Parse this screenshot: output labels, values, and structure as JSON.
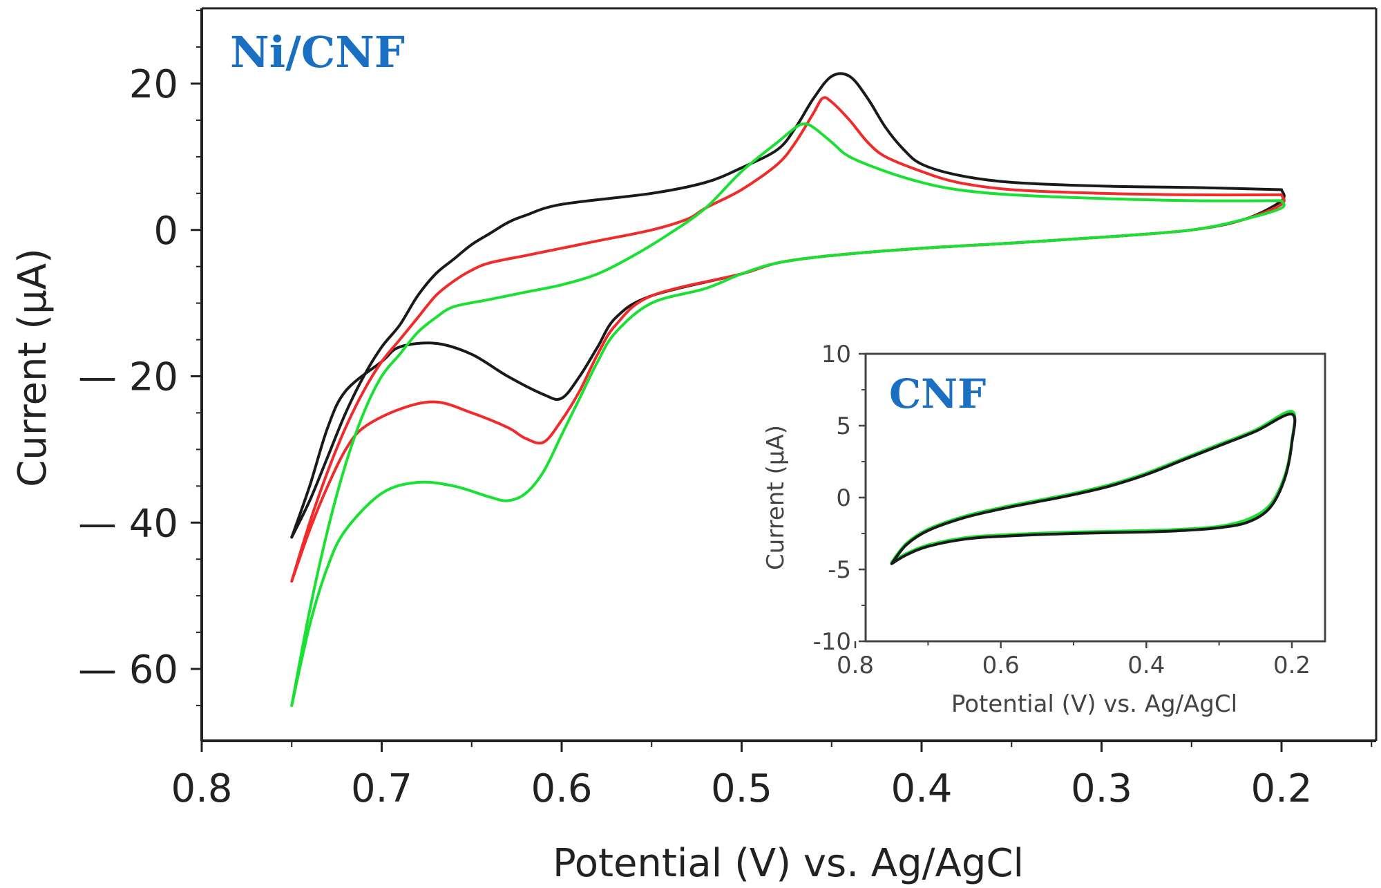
{
  "chart_data": [
    {
      "id": "main",
      "type": "line",
      "title": "Ni/CNF",
      "xlabel": "Potential (V) vs. Ag/AgCl",
      "ylabel": "Current (μA)",
      "xlim": [
        0.8,
        0.15
      ],
      "ylim": [
        -70,
        30
      ],
      "x_ticks": [
        0.8,
        0.7,
        0.6,
        0.5,
        0.4,
        0.3,
        0.2
      ],
      "x_tick_labels": [
        "0.8",
        "0.7",
        "0.6",
        "0.5",
        "0.4",
        "0.3",
        "0.2"
      ],
      "y_ticks": [
        20,
        0,
        -20,
        -40,
        -60
      ],
      "y_tick_labels": [
        "20",
        "0",
        "— 20",
        "— 40",
        "— 60"
      ],
      "series": [
        {
          "name": "cycle-black",
          "color": "#1a1a1a",
          "forward": [
            [
              0.75,
              -42
            ],
            [
              0.74,
              -37
            ],
            [
              0.73,
              -31
            ],
            [
              0.72,
              -25
            ],
            [
              0.71,
              -20
            ],
            [
              0.7,
              -16
            ],
            [
              0.69,
              -13
            ],
            [
              0.68,
              -9
            ],
            [
              0.67,
              -6
            ],
            [
              0.66,
              -4
            ],
            [
              0.65,
              -2
            ],
            [
              0.64,
              -0.5
            ],
            [
              0.63,
              1
            ],
            [
              0.62,
              2
            ],
            [
              0.6,
              3.5
            ],
            [
              0.55,
              5
            ],
            [
              0.52,
              6.5
            ],
            [
              0.5,
              8.5
            ],
            [
              0.48,
              11
            ],
            [
              0.47,
              14
            ],
            [
              0.46,
              18
            ],
            [
              0.45,
              21
            ],
            [
              0.44,
              21
            ],
            [
              0.43,
              18
            ],
            [
              0.42,
              14
            ],
            [
              0.41,
              11
            ],
            [
              0.4,
              9
            ],
            [
              0.38,
              7.5
            ],
            [
              0.35,
              6.5
            ],
            [
              0.3,
              6
            ],
            [
              0.25,
              5.8
            ],
            [
              0.2,
              5.5
            ]
          ],
          "reverse": [
            [
              0.2,
              5.5
            ],
            [
              0.2,
              4
            ],
            [
              0.22,
              1.5
            ],
            [
              0.25,
              0
            ],
            [
              0.3,
              -1
            ],
            [
              0.35,
              -1.8
            ],
            [
              0.4,
              -2.5
            ],
            [
              0.45,
              -3.5
            ],
            [
              0.48,
              -4.5
            ],
            [
              0.5,
              -6
            ],
            [
              0.55,
              -9
            ],
            [
              0.57,
              -12
            ],
            [
              0.58,
              -16
            ],
            [
              0.59,
              -20
            ],
            [
              0.6,
              -23
            ],
            [
              0.61,
              -22.5
            ],
            [
              0.63,
              -20
            ],
            [
              0.65,
              -17
            ],
            [
              0.67,
              -15.5
            ],
            [
              0.69,
              -16
            ],
            [
              0.7,
              -18
            ],
            [
              0.72,
              -22
            ],
            [
              0.73,
              -27
            ],
            [
              0.74,
              -35
            ],
            [
              0.75,
              -42
            ]
          ]
        },
        {
          "name": "cycle-red",
          "color": "#ef2b2b",
          "forward": [
            [
              0.75,
              -48
            ],
            [
              0.74,
              -40
            ],
            [
              0.73,
              -33
            ],
            [
              0.72,
              -27
            ],
            [
              0.71,
              -22
            ],
            [
              0.7,
              -18
            ],
            [
              0.69,
              -15
            ],
            [
              0.68,
              -12
            ],
            [
              0.67,
              -9
            ],
            [
              0.66,
              -7
            ],
            [
              0.65,
              -5.5
            ],
            [
              0.64,
              -4.5
            ],
            [
              0.62,
              -3.5
            ],
            [
              0.6,
              -2.5
            ],
            [
              0.58,
              -1.5
            ],
            [
              0.55,
              0
            ],
            [
              0.53,
              1.5
            ],
            [
              0.52,
              3
            ],
            [
              0.5,
              5.5
            ],
            [
              0.48,
              9
            ],
            [
              0.47,
              12
            ],
            [
              0.46,
              16
            ],
            [
              0.455,
              18
            ],
            [
              0.45,
              17.5
            ],
            [
              0.44,
              15
            ],
            [
              0.43,
              12
            ],
            [
              0.42,
              10
            ],
            [
              0.4,
              8
            ],
            [
              0.38,
              6.5
            ],
            [
              0.35,
              5.5
            ],
            [
              0.3,
              5
            ],
            [
              0.25,
              4.8
            ],
            [
              0.2,
              4.8
            ]
          ],
          "reverse": [
            [
              0.2,
              4.8
            ],
            [
              0.2,
              3.5
            ],
            [
              0.22,
              1.5
            ],
            [
              0.25,
              0
            ],
            [
              0.3,
              -1
            ],
            [
              0.35,
              -1.8
            ],
            [
              0.4,
              -2.5
            ],
            [
              0.45,
              -3.5
            ],
            [
              0.48,
              -4.5
            ],
            [
              0.5,
              -6
            ],
            [
              0.55,
              -9
            ],
            [
              0.57,
              -13
            ],
            [
              0.58,
              -17
            ],
            [
              0.59,
              -22
            ],
            [
              0.6,
              -26
            ],
            [
              0.61,
              -29
            ],
            [
              0.62,
              -28.5
            ],
            [
              0.63,
              -27
            ],
            [
              0.65,
              -25
            ],
            [
              0.67,
              -23.5
            ],
            [
              0.69,
              -24.5
            ],
            [
              0.71,
              -27
            ],
            [
              0.72,
              -30
            ],
            [
              0.73,
              -35
            ],
            [
              0.74,
              -41
            ],
            [
              0.75,
              -48
            ]
          ]
        },
        {
          "name": "cycle-green",
          "color": "#19e032",
          "forward": [
            [
              0.75,
              -65
            ],
            [
              0.74,
              -52
            ],
            [
              0.73,
              -41
            ],
            [
              0.72,
              -32
            ],
            [
              0.71,
              -25
            ],
            [
              0.7,
              -20
            ],
            [
              0.69,
              -17
            ],
            [
              0.68,
              -14
            ],
            [
              0.67,
              -12
            ],
            [
              0.66,
              -10.5
            ],
            [
              0.64,
              -9.5
            ],
            [
              0.62,
              -8.5
            ],
            [
              0.6,
              -7.5
            ],
            [
              0.58,
              -6
            ],
            [
              0.56,
              -3.5
            ],
            [
              0.54,
              -0.5
            ],
            [
              0.52,
              3
            ],
            [
              0.5,
              8
            ],
            [
              0.48,
              12
            ],
            [
              0.47,
              14
            ],
            [
              0.465,
              14.5
            ],
            [
              0.46,
              14
            ],
            [
              0.45,
              12
            ],
            [
              0.44,
              10
            ],
            [
              0.42,
              8
            ],
            [
              0.4,
              6.5
            ],
            [
              0.38,
              5.5
            ],
            [
              0.35,
              4.8
            ],
            [
              0.3,
              4.3
            ],
            [
              0.25,
              4
            ],
            [
              0.2,
              4
            ]
          ],
          "reverse": [
            [
              0.2,
              4
            ],
            [
              0.2,
              3
            ],
            [
              0.22,
              1.5
            ],
            [
              0.25,
              0
            ],
            [
              0.3,
              -1
            ],
            [
              0.35,
              -1.8
            ],
            [
              0.4,
              -2.5
            ],
            [
              0.45,
              -3.5
            ],
            [
              0.48,
              -4.5
            ],
            [
              0.5,
              -6
            ],
            [
              0.52,
              -8
            ],
            [
              0.55,
              -10
            ],
            [
              0.57,
              -14
            ],
            [
              0.58,
              -18
            ],
            [
              0.59,
              -23
            ],
            [
              0.6,
              -28
            ],
            [
              0.61,
              -33
            ],
            [
              0.62,
              -36
            ],
            [
              0.63,
              -37
            ],
            [
              0.64,
              -36.5
            ],
            [
              0.66,
              -35
            ],
            [
              0.68,
              -34.5
            ],
            [
              0.7,
              -36
            ],
            [
              0.72,
              -41
            ],
            [
              0.73,
              -46
            ],
            [
              0.74,
              -54
            ],
            [
              0.75,
              -65
            ]
          ]
        }
      ]
    },
    {
      "id": "inset",
      "type": "line",
      "title": "CNF",
      "xlabel": "Potential (V) vs. Ag/AgCl",
      "ylabel": "Current (μA)",
      "xlim": [
        0.82,
        0.18
      ],
      "ylim": [
        -10,
        10
      ],
      "x_ticks": [
        0.8,
        0.6,
        0.4,
        0.2
      ],
      "x_tick_labels": [
        "0.8",
        "0.6",
        "0.4",
        "0.2"
      ],
      "y_ticks": [
        10,
        5,
        0,
        -5,
        -10
      ],
      "y_tick_labels": [
        "10",
        "5",
        "0",
        "-5",
        "-10"
      ],
      "series": [
        {
          "name": "cnf-green",
          "color": "#19e032",
          "points": [
            [
              0.75,
              -4.5
            ],
            [
              0.73,
              -3.2
            ],
            [
              0.7,
              -2.2
            ],
            [
              0.65,
              -1.3
            ],
            [
              0.6,
              -0.7
            ],
            [
              0.55,
              -0.2
            ],
            [
              0.5,
              0.3
            ],
            [
              0.45,
              0.9
            ],
            [
              0.4,
              1.7
            ],
            [
              0.35,
              2.7
            ],
            [
              0.3,
              3.7
            ],
            [
              0.25,
              4.7
            ],
            [
              0.2,
              6
            ],
            [
              0.2,
              4
            ],
            [
              0.21,
              1.5
            ],
            [
              0.23,
              -0.5
            ],
            [
              0.26,
              -1.5
            ],
            [
              0.3,
              -2
            ],
            [
              0.35,
              -2.2
            ],
            [
              0.4,
              -2.3
            ],
            [
              0.5,
              -2.4
            ],
            [
              0.6,
              -2.6
            ],
            [
              0.65,
              -2.8
            ],
            [
              0.7,
              -3.3
            ],
            [
              0.73,
              -3.9
            ],
            [
              0.75,
              -4.5
            ]
          ]
        },
        {
          "name": "cnf-black",
          "color": "#1a1a1a",
          "points": [
            [
              0.75,
              -4.6
            ],
            [
              0.73,
              -3.3
            ],
            [
              0.7,
              -2.3
            ],
            [
              0.65,
              -1.4
            ],
            [
              0.6,
              -0.8
            ],
            [
              0.55,
              -0.3
            ],
            [
              0.5,
              0.2
            ],
            [
              0.45,
              0.8
            ],
            [
              0.4,
              1.6
            ],
            [
              0.35,
              2.6
            ],
            [
              0.3,
              3.6
            ],
            [
              0.25,
              4.6
            ],
            [
              0.2,
              5.8
            ],
            [
              0.2,
              3.8
            ],
            [
              0.21,
              1.3
            ],
            [
              0.23,
              -0.7
            ],
            [
              0.26,
              -1.7
            ],
            [
              0.3,
              -2.1
            ],
            [
              0.35,
              -2.3
            ],
            [
              0.4,
              -2.4
            ],
            [
              0.5,
              -2.5
            ],
            [
              0.6,
              -2.7
            ],
            [
              0.65,
              -2.9
            ],
            [
              0.7,
              -3.4
            ],
            [
              0.73,
              -4
            ],
            [
              0.75,
              -4.6
            ]
          ]
        }
      ]
    }
  ],
  "colors": {
    "title": "#1a6fc2",
    "axis": "#222222",
    "inset_axis": "#444444"
  }
}
